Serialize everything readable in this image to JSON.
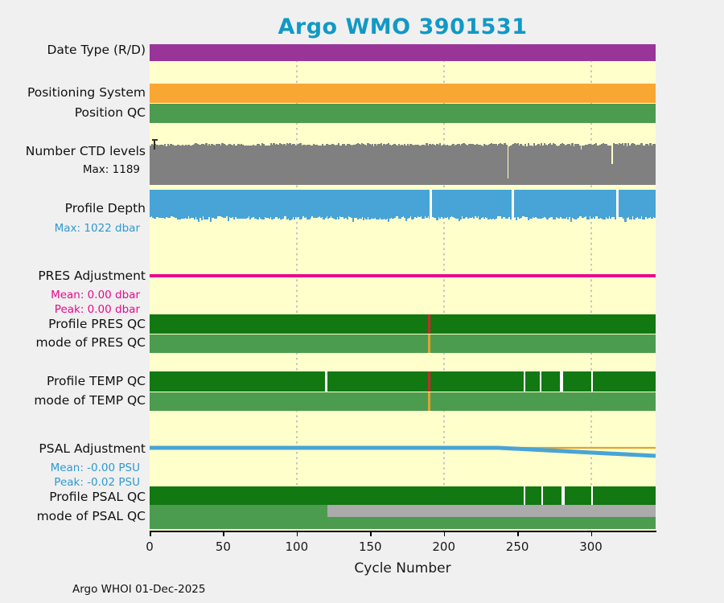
{
  "title": "Argo WMO 3901531",
  "footer": "Argo WHOI 01-Dec-2025",
  "x_axis": {
    "label": "Cycle Number",
    "tick_labels": [
      "0",
      "50",
      "100",
      "150",
      "200",
      "250",
      "300"
    ],
    "tick_values": [
      0,
      50,
      100,
      150,
      200,
      250,
      300
    ],
    "gridline_values": [
      100,
      200,
      300
    ]
  },
  "colors": {
    "title": "#1199C6",
    "page_bg": "#F0F0F0",
    "plot_bg": "#FFFFCC",
    "purple": "#993499",
    "orange": "#F8A733",
    "green_mid": "#4C9C50",
    "green_dark": "#127812",
    "gray_bar": "#808080",
    "gray_light": "#ABABAB",
    "blue_bar": "#48A4D6",
    "blue_text": "#2E9AD0",
    "magenta": "#E80A8C",
    "red_tick": "#CC2A2A",
    "orange_tick": "#E2A32F",
    "gap": "#FFFFFF",
    "gridline": "#C6C6C6"
  },
  "chart_data": {
    "type": "bar",
    "title": "Argo WMO 3901531",
    "x_label": "Cycle Number",
    "x_range": [
      0,
      344
    ],
    "rows": [
      {
        "id": "date_type",
        "label": "Date Type (R/D)",
        "style": "solid",
        "color_key": "purple"
      },
      {
        "id": "positioning_system",
        "label": "Positioning System",
        "style": "solid",
        "color_key": "orange"
      },
      {
        "id": "position_qc",
        "label": "Position QC",
        "style": "solid",
        "color_key": "green_mid"
      },
      {
        "id": "ctd_levels",
        "label": "Number CTD levels",
        "sublabel": "Max: 1189",
        "style": "noisy_bars",
        "color_key": "gray_bar",
        "max_value": 1189,
        "marker_cycle": 3,
        "dips": [
          {
            "cycle": 243,
            "frac": 0.15
          },
          {
            "cycle": 314,
            "frac": 0.5
          }
        ]
      },
      {
        "id": "profile_depth",
        "label": "Profile Depth",
        "sublabel": "Max: 1022 dbar",
        "style": "noisy_bars_top",
        "color_key": "blue_bar",
        "max_value": 1022,
        "gaps": [
          {
            "cycle": 191
          },
          {
            "cycle": 247
          },
          {
            "cycle": 318
          }
        ]
      },
      {
        "id": "pres_adjustment",
        "label": "PRES Adjustment",
        "sublabel_mean": "Mean: 0.00 dbar",
        "sublabel_peak": "Peak: 0.00 dbar",
        "style": "line",
        "color_key": "magenta",
        "mean_dbar": 0.0,
        "peak_dbar": 0.0
      },
      {
        "id": "profile_pres_qc",
        "label": "Profile PRES QC",
        "style": "solid",
        "color_key": "green_dark",
        "ticks": [
          {
            "cycle": 190,
            "color_key": "red_tick"
          }
        ]
      },
      {
        "id": "mode_pres_qc",
        "label": "mode of PRES QC",
        "style": "solid",
        "color_key": "green_mid",
        "ticks": [
          {
            "cycle": 190,
            "color_key": "orange_tick"
          }
        ]
      },
      {
        "id": "profile_temp_qc",
        "label": "Profile TEMP QC",
        "style": "solid",
        "color_key": "green_dark",
        "ticks": [
          {
            "cycle": 190,
            "color_key": "red_tick"
          }
        ],
        "gaps": [
          {
            "cycle": 120
          },
          {
            "cycle": 255
          },
          {
            "cycle": 266
          },
          {
            "cycle": 280,
            "w": 2
          },
          {
            "cycle": 301
          }
        ]
      },
      {
        "id": "mode_temp_qc",
        "label": "mode of TEMP QC",
        "style": "solid",
        "color_key": "green_mid",
        "ticks": [
          {
            "cycle": 190,
            "color_key": "orange_tick"
          }
        ]
      },
      {
        "id": "psal_adjustment",
        "label": "PSAL Adjustment",
        "sublabel_mean": "Mean: -0.00 PSU",
        "sublabel_peak": "Peak: -0.02 PSU",
        "style": "adj_line",
        "line_color_key": "blue_bar",
        "zero_color_key": "orange_tick",
        "mean_psu": -0.0,
        "peak_psu": -0.02,
        "peak_value": -0.02,
        "points": [
          {
            "cycle": 0,
            "value": 0.0
          },
          {
            "cycle": 237,
            "value": 0.0
          },
          {
            "cycle": 344,
            "value": -0.02
          }
        ]
      },
      {
        "id": "profile_psal_qc",
        "label": "Profile PSAL QC",
        "style": "solid",
        "color_key": "green_dark",
        "gaps": [
          {
            "cycle": 255
          },
          {
            "cycle": 267
          },
          {
            "cycle": 281,
            "w": 2
          },
          {
            "cycle": 301
          }
        ]
      },
      {
        "id": "mode_psal_qc",
        "label": "mode of PSAL QC",
        "style": "solid",
        "color_key": "green_mid",
        "overlay": {
          "from_cycle": 121,
          "color_key": "gray_light"
        }
      }
    ]
  }
}
